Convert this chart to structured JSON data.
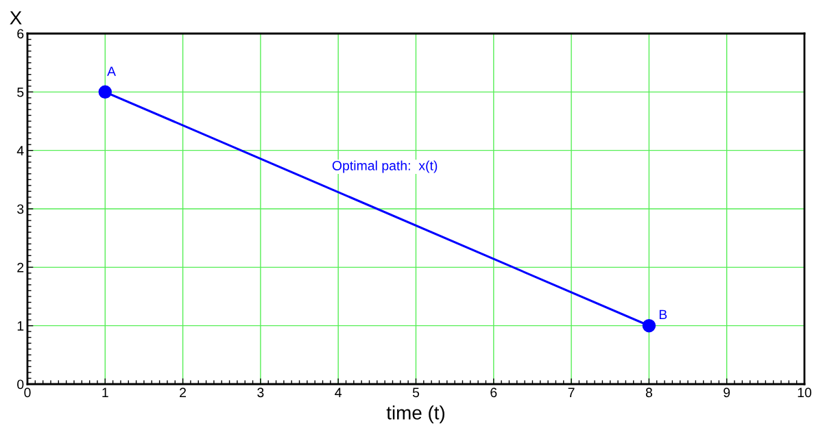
{
  "chart_data": {
    "type": "line",
    "xlabel": "time (t)",
    "ylabel": "X",
    "x": [
      1,
      8
    ],
    "series": [
      {
        "color": "#0000ff",
        "values": [
          5,
          1
        ]
      }
    ],
    "xlim": [
      0,
      10
    ],
    "xticks": [
      0,
      1,
      2,
      3,
      4,
      5,
      6,
      7,
      8,
      9,
      10
    ],
    "ylim": [
      0,
      6
    ],
    "yticks": [
      0,
      1,
      2,
      3,
      4,
      5,
      6
    ],
    "grid": true,
    "marker": "circle",
    "line_style": "solid",
    "annotations": [
      {
        "text": "A",
        "x": 1,
        "y": 5
      },
      {
        "text": "B",
        "x": 8,
        "y": 1
      },
      "Optimal path:  x(t)"
    ]
  }
}
